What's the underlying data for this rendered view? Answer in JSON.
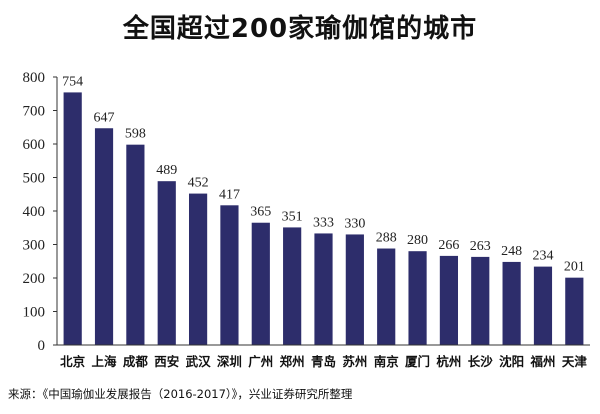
{
  "chart_data": {
    "type": "bar",
    "title": "全国超过200家瑜伽馆的城市",
    "categories": [
      "北京",
      "上海",
      "成都",
      "西安",
      "武汉",
      "深圳",
      "广州",
      "郑州",
      "青岛",
      "苏州",
      "南京",
      "厦门",
      "杭州",
      "长沙",
      "沈阳",
      "福州",
      "天津"
    ],
    "values": [
      754,
      647,
      598,
      489,
      452,
      417,
      365,
      351,
      333,
      330,
      288,
      280,
      266,
      263,
      248,
      234,
      201
    ],
    "ylim": [
      0,
      800
    ],
    "yticks": [
      0,
      100,
      200,
      300,
      400,
      500,
      600,
      700,
      800
    ],
    "xlabel": "",
    "ylabel": "",
    "grid": false,
    "bar_color": "#2d2d6b"
  },
  "source": "来源：《中国瑜伽业发展报告（2016-2017）》，兴业证券研究所整理"
}
